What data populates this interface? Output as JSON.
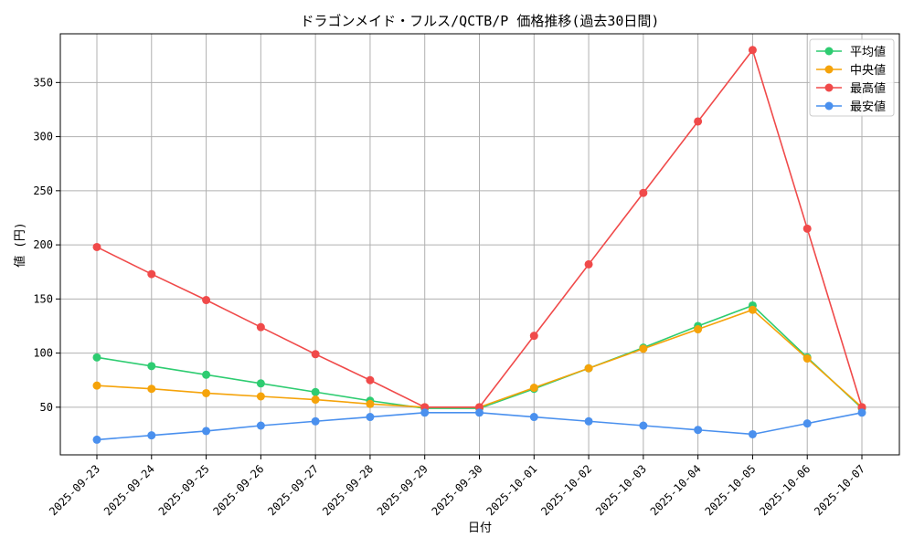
{
  "chart_data": {
    "type": "line",
    "title": "ドラゴンメイド・フルス/QCTB/P 価格推移(過去30日間)",
    "xlabel": "日付",
    "ylabel": "値 (円)",
    "ylim": [
      6,
      395
    ],
    "yticks": [
      50,
      100,
      150,
      200,
      250,
      300,
      350
    ],
    "grid": true,
    "legend_position": "top-right",
    "categories": [
      "2025-09-23",
      "2025-09-24",
      "2025-09-25",
      "2025-09-26",
      "2025-09-27",
      "2025-09-28",
      "2025-09-29",
      "2025-09-30",
      "2025-10-01",
      "2025-10-02",
      "2025-10-03",
      "2025-10-04",
      "2025-10-05",
      "2025-10-06",
      "2025-10-07"
    ],
    "series": [
      {
        "name": "平均値",
        "color": "#2ecc71",
        "values": [
          96,
          88,
          80,
          72,
          64,
          56,
          49,
          49,
          67,
          86,
          105,
          125,
          144,
          96,
          49
        ]
      },
      {
        "name": "中央値",
        "color": "#f5a30a",
        "values": [
          70,
          67,
          63,
          60,
          57,
          53,
          50,
          50,
          68,
          86,
          104,
          122,
          140,
          95,
          50
        ]
      },
      {
        "name": "最高値",
        "color": "#f04a4a",
        "values": [
          198,
          173,
          149,
          124,
          99,
          75,
          50,
          50,
          116,
          182,
          248,
          314,
          380,
          215,
          50
        ]
      },
      {
        "name": "最安値",
        "color": "#4a90ee",
        "values": [
          20,
          24,
          28,
          33,
          37,
          41,
          45,
          45,
          41,
          37,
          33,
          29,
          25,
          35,
          45
        ]
      }
    ]
  }
}
